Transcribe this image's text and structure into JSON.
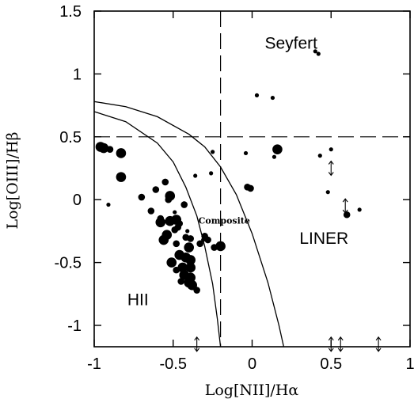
{
  "chart_data": {
    "type": "scatter",
    "title": "",
    "xlabel": "Log[NII]/Hα",
    "ylabel": "Log[OIII]/Hβ",
    "xlim": [
      -1,
      1
    ],
    "ylim": [
      -1.17,
      1.5
    ],
    "x_ticks": [
      -1,
      -0.5,
      0,
      0.5,
      1
    ],
    "x_tick_labels": [
      "-1",
      "-0.5",
      "0",
      "0.5",
      "1"
    ],
    "y_ticks": [
      -1,
      -0.5,
      0,
      0.5,
      1,
      1.5
    ],
    "y_tick_labels": [
      "-1",
      "-0.5",
      "0",
      "0.5",
      "1",
      "1.5"
    ],
    "grid": false,
    "region_labels": [
      {
        "text": "Seyfert",
        "x": 0.08,
        "y": 1.2
      },
      {
        "text": "LINER",
        "x": 0.3,
        "y": -0.35
      },
      {
        "text": "HII",
        "x": -0.79,
        "y": -0.84
      },
      {
        "text": "Composite",
        "x": -0.34,
        "y": -0.19
      }
    ],
    "dividing_lines": {
      "vertical_dashed_x": -0.2,
      "horizontal_dashed_y": 0.5,
      "kauffmann_curve": [
        [
          -1,
          0.7
        ],
        [
          -0.8,
          0.62
        ],
        [
          -0.6,
          0.45
        ],
        [
          -0.5,
          0.3
        ],
        [
          -0.42,
          0.1
        ],
        [
          -0.35,
          -0.13
        ],
        [
          -0.3,
          -0.37
        ],
        [
          -0.25,
          -0.67
        ],
        [
          -0.22,
          -0.95
        ],
        [
          -0.2,
          -1.17
        ]
      ],
      "kewley_curve": [
        [
          -1,
          0.78
        ],
        [
          -0.8,
          0.74
        ],
        [
          -0.6,
          0.66
        ],
        [
          -0.4,
          0.52
        ],
        [
          -0.3,
          0.42
        ],
        [
          -0.2,
          0.26
        ],
        [
          -0.1,
          0.04
        ],
        [
          0,
          -0.27
        ],
        [
          0.1,
          -0.66
        ],
        [
          0.17,
          -1.0
        ],
        [
          0.2,
          -1.17
        ]
      ]
    },
    "series": [
      {
        "marker": "filled-circle",
        "points": [
          [
            -0.96,
            0.42,
            "l"
          ],
          [
            -0.94,
            0.41,
            "l"
          ],
          [
            -0.9,
            0.4,
            "m"
          ],
          [
            -0.83,
            0.37,
            "l"
          ],
          [
            -0.83,
            0.18,
            "l"
          ],
          [
            -0.91,
            -0.04,
            "s"
          ],
          [
            -0.7,
            0.02,
            "m"
          ],
          [
            -0.61,
            0.08,
            "m"
          ],
          [
            -0.55,
            0.14,
            "m"
          ],
          [
            -0.52,
            0.03,
            "l"
          ],
          [
            -0.53,
            0.0,
            "m"
          ],
          [
            -0.43,
            -0.04,
            "m"
          ],
          [
            -0.64,
            -0.09,
            "m"
          ],
          [
            -0.58,
            -0.15,
            "m"
          ],
          [
            -0.58,
            -0.18,
            "l"
          ],
          [
            -0.52,
            -0.17,
            "l"
          ],
          [
            -0.48,
            -0.16,
            "l"
          ],
          [
            -0.46,
            -0.19,
            "m"
          ],
          [
            -0.54,
            -0.28,
            "l"
          ],
          [
            -0.49,
            -0.24,
            "m"
          ],
          [
            -0.56,
            -0.32,
            "l"
          ],
          [
            -0.42,
            -0.3,
            "m"
          ],
          [
            -0.4,
            -0.38,
            "l"
          ],
          [
            -0.46,
            -0.44,
            "l"
          ],
          [
            -0.42,
            -0.46,
            "l"
          ],
          [
            -0.39,
            -0.48,
            "l"
          ],
          [
            -0.51,
            -0.5,
            "l"
          ],
          [
            -0.44,
            -0.54,
            "l"
          ],
          [
            -0.39,
            -0.54,
            "l"
          ],
          [
            -0.48,
            -0.56,
            "m"
          ],
          [
            -0.43,
            -0.6,
            "l"
          ],
          [
            -0.39,
            -0.62,
            "l"
          ],
          [
            -0.45,
            -0.65,
            "m"
          ],
          [
            -0.38,
            -0.68,
            "l"
          ],
          [
            -0.4,
            -0.66,
            "l"
          ],
          [
            -0.35,
            -0.72,
            "m"
          ],
          [
            -0.39,
            -0.31,
            "m"
          ],
          [
            -0.48,
            -0.35,
            "m"
          ],
          [
            -0.47,
            -0.22,
            "m"
          ],
          [
            -0.33,
            -0.35,
            "m"
          ],
          [
            -0.28,
            -0.32,
            "m"
          ],
          [
            -0.24,
            -0.38,
            "m"
          ],
          [
            -0.3,
            -0.29,
            "m"
          ],
          [
            -0.2,
            -0.37,
            "l"
          ],
          [
            -0.36,
            0.19,
            "s"
          ],
          [
            -0.26,
            0.21,
            "s"
          ],
          [
            -0.41,
            -0.25,
            "s"
          ],
          [
            -0.49,
            -0.1,
            "s"
          ],
          [
            -0.31,
            -0.32,
            "s"
          ],
          [
            -0.03,
            0.1,
            "m"
          ],
          [
            -0.01,
            0.09,
            "m"
          ],
          [
            0.03,
            0.83,
            "s"
          ],
          [
            0.13,
            0.81,
            "s"
          ],
          [
            0.16,
            0.4,
            "l"
          ],
          [
            0.14,
            0.34,
            "s"
          ],
          [
            -0.04,
            0.37,
            "s"
          ],
          [
            -0.25,
            0.38,
            "s"
          ],
          [
            0.5,
            0.4,
            "s"
          ],
          [
            0.43,
            0.35,
            "s"
          ],
          [
            0.48,
            0.06,
            "s"
          ],
          [
            0.6,
            -0.12,
            "m"
          ],
          [
            0.68,
            -0.08,
            "s"
          ],
          [
            0.4,
            1.18,
            "s"
          ],
          [
            0.42,
            1.16,
            "s"
          ]
        ]
      },
      {
        "marker": "upper-limit-arrow",
        "points": [
          [
            -0.35,
            -1.15
          ],
          [
            0.5,
            -1.15
          ],
          [
            0.56,
            -1.15
          ],
          [
            0.8,
            -1.15
          ],
          [
            0.5,
            0.25
          ],
          [
            0.59,
            -0.05
          ]
        ]
      }
    ]
  }
}
